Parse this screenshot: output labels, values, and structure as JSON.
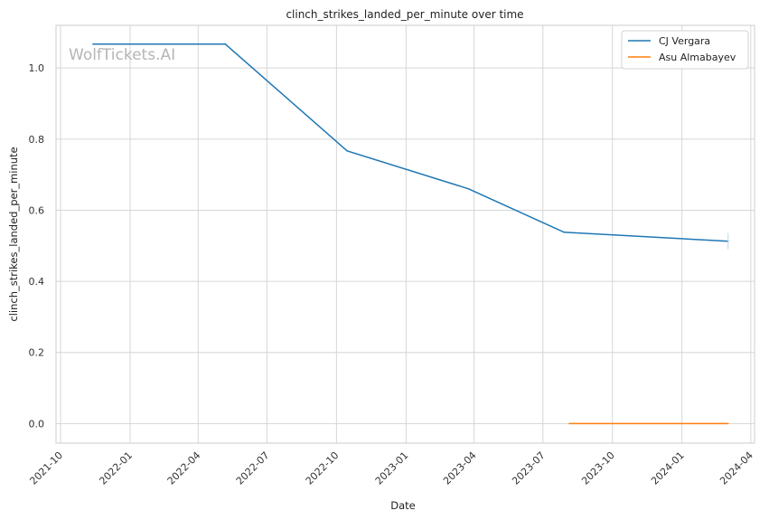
{
  "chart_data": {
    "type": "line",
    "title": "clinch_strikes_landed_per_minute over time",
    "xlabel": "Date",
    "ylabel": "clinch_strikes_landed_per_minute",
    "watermark": "WolfTickets.AI",
    "xlim": [
      "2021-09-25",
      "2024-04-06"
    ],
    "ylim": [
      -0.055,
      1.12
    ],
    "x_ticks": [
      "2021-10",
      "2022-01",
      "2022-04",
      "2022-07",
      "2022-10",
      "2023-01",
      "2023-04",
      "2023-07",
      "2023-10",
      "2024-01",
      "2024-04"
    ],
    "y_ticks": [
      0.0,
      0.2,
      0.4,
      0.6,
      0.8,
      1.0
    ],
    "y_tick_labels": [
      "0.0",
      "0.2",
      "0.4",
      "0.6",
      "0.8",
      "1.0"
    ],
    "grid": true,
    "legend_position": "top-right",
    "series": [
      {
        "name": "CJ Vergara",
        "color": "#1f77b4",
        "points": [
          {
            "x": "2021-11-13",
            "y": 1.067
          },
          {
            "x": "2022-05-07",
            "y": 1.067
          },
          {
            "x": "2022-10-15",
            "y": 0.767
          },
          {
            "x": "2023-03-25",
            "y": 0.66
          },
          {
            "x": "2023-07-29",
            "y": 0.538
          },
          {
            "x": "2024-03-02",
            "y": 0.513
          }
        ]
      },
      {
        "name": "Asu Almabayev",
        "color": "#ff7f0e",
        "points": [
          {
            "x": "2023-08-05",
            "y": 0.0
          },
          {
            "x": "2024-03-02",
            "y": 0.0
          }
        ]
      }
    ]
  }
}
